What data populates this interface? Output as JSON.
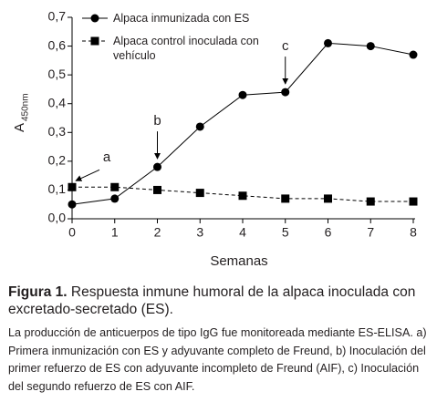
{
  "chart_data": {
    "type": "line",
    "xlabel": "Semanas",
    "ylabel": "A",
    "ylabel_sub": "450nm",
    "x": [
      0,
      1,
      2,
      3,
      4,
      5,
      6,
      7,
      8
    ],
    "series": [
      {
        "name": "Alpaca inmunizada con ES",
        "color": "#000000",
        "marker": "circle",
        "dashed": false,
        "values": [
          0.05,
          0.07,
          0.18,
          0.32,
          0.43,
          0.44,
          0.61,
          0.6,
          0.57
        ]
      },
      {
        "name": "Alpaca control inoculada con vehículo",
        "color": "#000000",
        "marker": "square",
        "dashed": true,
        "values": [
          0.11,
          0.11,
          0.1,
          0.09,
          0.08,
          0.07,
          0.07,
          0.06,
          0.06
        ]
      }
    ],
    "xlim": [
      0,
      8
    ],
    "xticks": [
      0,
      1,
      2,
      3,
      4,
      5,
      6,
      7,
      8
    ],
    "ylim": [
      0,
      0.7
    ],
    "yticks": [
      {
        "value": 0,
        "label": "0,0"
      },
      {
        "value": 0.1,
        "label": "0,1"
      },
      {
        "value": 0.2,
        "label": "0,2"
      },
      {
        "value": 0.3,
        "label": "0,3"
      },
      {
        "value": 0.4,
        "label": "0,4"
      },
      {
        "value": 0.5,
        "label": "0,5"
      },
      {
        "value": 0.6,
        "label": "0,6"
      },
      {
        "value": 0.7,
        "label": "0,7"
      }
    ],
    "annotations": [
      {
        "text": "a",
        "x": 0
      },
      {
        "text": "b",
        "x": 2
      },
      {
        "text": "c",
        "x": 5
      }
    ]
  },
  "figure_label": "Figura 1.",
  "caption": "Respuesta inmune humoral de la alpaca inoculada con excretado-secretado (ES).",
  "description": "La producción de anticuerpos de tipo IgG fue monitoreada mediante ES-ELISA. a) Primera inmunización con ES y adyuvante completo de Freund, b) Inoculación del primer refuerzo de ES con adyuvante incompleto de Freund (AIF), c) Inoculación del segundo refuerzo de ES con AIF."
}
